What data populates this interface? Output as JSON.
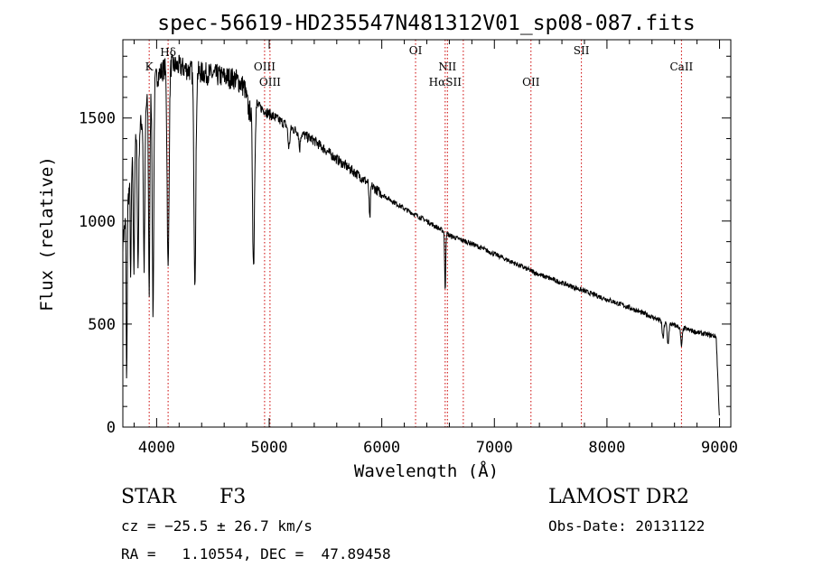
{
  "chart_data": {
    "type": "line",
    "title": "spec-56619-HD235547N481312V01_sp08-087.fits",
    "xlabel": "Wavelength (Å)",
    "ylabel": "Flux (relative)",
    "xlim": [
      3700,
      9100
    ],
    "ylim": [
      0,
      1880
    ],
    "x_ticks": [
      4000,
      5000,
      6000,
      7000,
      8000,
      9000
    ],
    "y_ticks": [
      0,
      500,
      1000,
      1500
    ],
    "grid": false,
    "series_color": "#000000",
    "marker_color": "#cc0000",
    "line_markers": [
      {
        "label": "K",
        "x": 3934,
        "row": 2
      },
      {
        "label": "Hδ",
        "x": 4102,
        "row": 0
      },
      {
        "label": "OIII",
        "x": 4959,
        "row": 2
      },
      {
        "label": "OIII",
        "x": 5007,
        "row": 3
      },
      {
        "label": "OI",
        "x": 6300,
        "row": 1
      },
      {
        "label": "NII",
        "x": 6583,
        "row": 2
      },
      {
        "label": "HαSII",
        "x": 6563,
        "row": 3
      },
      {
        "label": "SII",
        "x": 6724,
        "row": -1
      },
      {
        "label": "OII",
        "x": 7325,
        "row": 3
      },
      {
        "label": "SII",
        "x": 7773,
        "row": 1
      },
      {
        "label": "CaII",
        "x": 8662,
        "row": 2
      }
    ],
    "continuum": [
      [
        3700,
        900
      ],
      [
        3800,
        1350
      ],
      [
        3900,
        1550
      ],
      [
        4000,
        1700
      ],
      [
        4100,
        1760
      ],
      [
        4200,
        1750
      ],
      [
        4300,
        1730
      ],
      [
        4400,
        1720
      ],
      [
        4500,
        1710
      ],
      [
        4600,
        1700
      ],
      [
        4700,
        1690
      ],
      [
        4780,
        1650
      ],
      [
        4820,
        1530
      ],
      [
        4900,
        1560
      ],
      [
        5000,
        1520
      ],
      [
        5200,
        1450
      ],
      [
        5400,
        1390
      ],
      [
        5600,
        1300
      ],
      [
        5800,
        1220
      ],
      [
        6000,
        1130
      ],
      [
        6200,
        1060
      ],
      [
        6400,
        1000
      ],
      [
        6550,
        950
      ],
      [
        6600,
        930
      ],
      [
        6800,
        890
      ],
      [
        7000,
        840
      ],
      [
        7200,
        790
      ],
      [
        7400,
        740
      ],
      [
        7600,
        700
      ],
      [
        7800,
        660
      ],
      [
        8000,
        620
      ],
      [
        8200,
        580
      ],
      [
        8400,
        535
      ],
      [
        8500,
        510
      ],
      [
        8800,
        460
      ],
      [
        8970,
        440
      ],
      [
        9000,
        30
      ]
    ],
    "absorption_lines": [
      {
        "x": 3734,
        "depth": 850,
        "width": 6
      },
      {
        "x": 3770,
        "depth": 500,
        "width": 6
      },
      {
        "x": 3798,
        "depth": 600,
        "width": 7
      },
      {
        "x": 3835,
        "depth": 650,
        "width": 8
      },
      {
        "x": 3889,
        "depth": 750,
        "width": 9
      },
      {
        "x": 3934,
        "depth": 950,
        "width": 8
      },
      {
        "x": 3968,
        "depth": 1100,
        "width": 9
      },
      {
        "x": 4102,
        "depth": 1000,
        "width": 12
      },
      {
        "x": 4340,
        "depth": 1000,
        "width": 12
      },
      {
        "x": 4861,
        "depth": 760,
        "width": 12
      },
      {
        "x": 5175,
        "depth": 100,
        "width": 12
      },
      {
        "x": 5270,
        "depth": 80,
        "width": 8
      },
      {
        "x": 5893,
        "depth": 170,
        "width": 8
      },
      {
        "x": 6563,
        "depth": 290,
        "width": 6
      },
      {
        "x": 8498,
        "depth": 80,
        "width": 10
      },
      {
        "x": 8542,
        "depth": 100,
        "width": 10
      },
      {
        "x": 8662,
        "depth": 90,
        "width": 10
      }
    ]
  },
  "info": {
    "object_class": "STAR",
    "subclass": "F3",
    "survey": "LAMOST DR2",
    "redshift": "cz = −25.5 ± 26.7 km/s",
    "obs_date": "Obs-Date: 20131122",
    "coords": "RA =   1.10554, DEC =  47.89458"
  }
}
